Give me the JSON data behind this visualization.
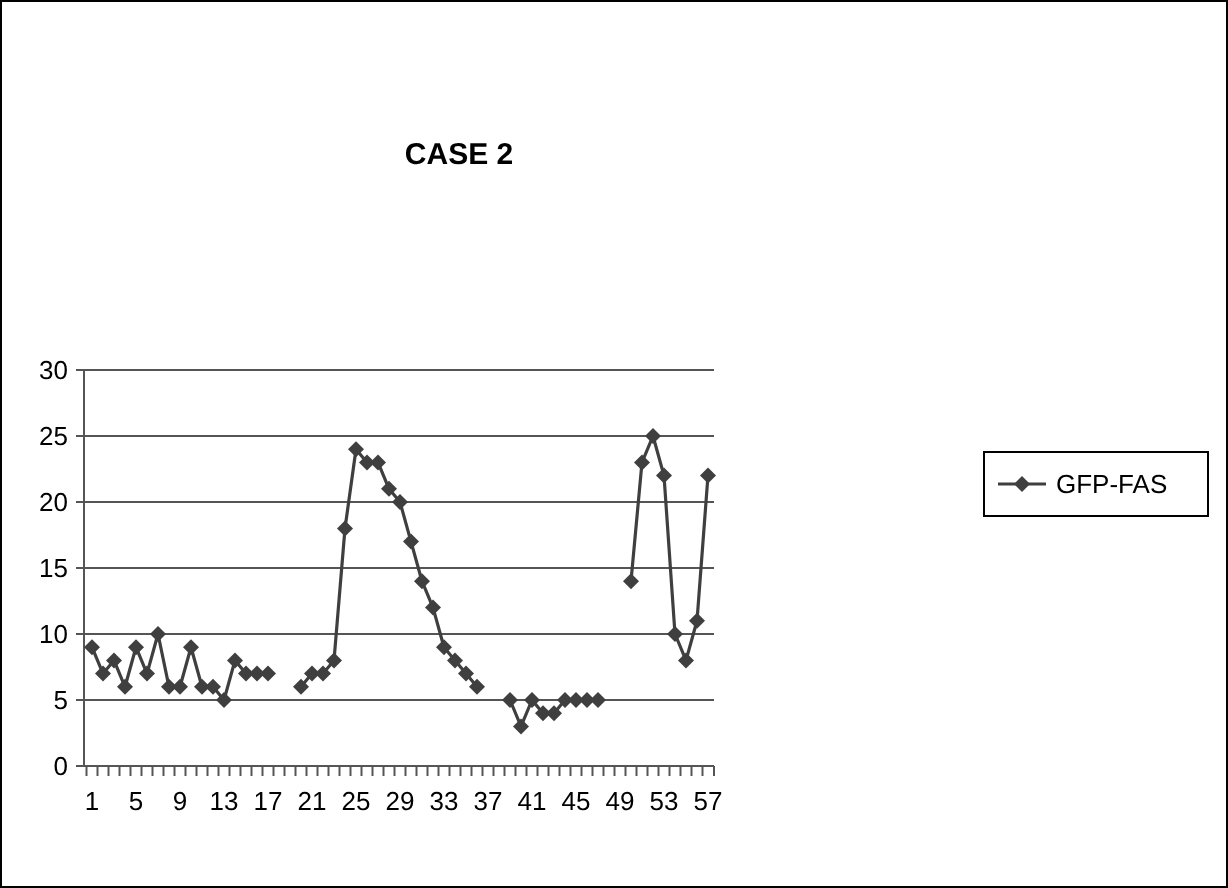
{
  "chart_data": {
    "type": "line",
    "title": "CASE 2",
    "categories": [
      "1",
      null,
      null,
      null,
      "5",
      null,
      null,
      null,
      "9",
      null,
      null,
      null,
      "13",
      null,
      null,
      null,
      "17",
      null,
      null,
      null,
      "21",
      null,
      null,
      null,
      "25",
      null,
      null,
      null,
      "29",
      null,
      null,
      null,
      "33",
      null,
      null,
      null,
      "37",
      null,
      null,
      null,
      "41",
      null,
      null,
      null,
      "45",
      null,
      null,
      null,
      "49",
      null,
      null,
      null,
      "53",
      null,
      null,
      null,
      "57"
    ],
    "series": [
      {
        "name": "GFP-FAS",
        "color": "#3f3f3f",
        "values": [
          9,
          7,
          8,
          6,
          9,
          7,
          10,
          6,
          6,
          9,
          6,
          6,
          5,
          8,
          7,
          7,
          7,
          null,
          null,
          6,
          7,
          7,
          8,
          18,
          24,
          23,
          23,
          21,
          20,
          17,
          14,
          12,
          9,
          8,
          7,
          6,
          null,
          null,
          5,
          3,
          5,
          4,
          4,
          5,
          5,
          5,
          5,
          null,
          null,
          14,
          23,
          25,
          22,
          10,
          8,
          11,
          22
        ]
      }
    ],
    "ylim": [
      0,
      30
    ],
    "yticks": [
      0,
      5,
      10,
      15,
      20,
      25,
      30
    ],
    "grid": "y",
    "legend": "right",
    "marker": "diamond",
    "line_style": "solid"
  }
}
